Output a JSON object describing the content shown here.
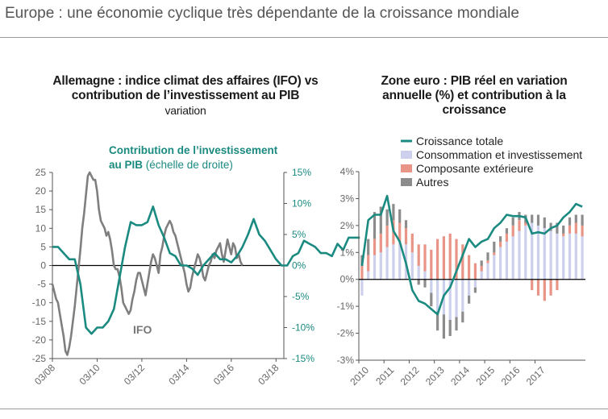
{
  "header": {
    "title": "Europe : une économie cyclique très dépendante de la croissance mondiale"
  },
  "colors": {
    "teal": "#1b8a80",
    "grey": "#7f7f7f",
    "lavender": "#cdd0ec",
    "salmon": "#e89486",
    "darkgrey": "#8c8c8c"
  },
  "chart_data": [
    {
      "type": "line",
      "title": "Allemagne : indice climat des affaires (IFO) vs contribution de l’investissement au PIB",
      "subtitle": "variation",
      "annotation_teal": "Contribution de l’investissement au PIB",
      "annotation_teal_suffix": "(échelle de droite)",
      "annotation_ifo": "IFO",
      "x_ticks": [
        "03/08",
        "03/10",
        "03/12",
        "03/14",
        "03/16",
        "03/18"
      ],
      "y_left": {
        "ylim": [
          -25,
          25
        ],
        "ticks": [
          "25",
          "20",
          "15",
          "10",
          "5",
          "0",
          "-5",
          "-10",
          "-15",
          "-20",
          "-25"
        ]
      },
      "y_right": {
        "ylim": [
          -15,
          15
        ],
        "ticks": [
          "15%",
          "10%",
          "5%",
          "0%",
          "-5%",
          "-10%",
          "-15%"
        ]
      },
      "series": [
        {
          "name": "IFO",
          "axis": "left",
          "x_start": 2008.0,
          "step": 0.0833,
          "values": [
            -5,
            -7,
            -9,
            -10,
            -13,
            -16,
            -19,
            -23,
            -24,
            -22,
            -19,
            -15,
            -11,
            -6,
            -1,
            4,
            10,
            14,
            19,
            24,
            25,
            24,
            23,
            23,
            20,
            15,
            12,
            11,
            10,
            8,
            9,
            7,
            4,
            0,
            -1,
            -1,
            -3,
            -6,
            -10,
            -11,
            -12,
            -13,
            -12,
            -9,
            -7,
            -4,
            -2,
            -2,
            -4,
            -6,
            -8,
            -5,
            -2,
            1,
            3,
            2,
            0,
            -2,
            3,
            5,
            8,
            10,
            11,
            12,
            11,
            9,
            8,
            6,
            4,
            2,
            0,
            -2,
            -5,
            -7,
            -6,
            -3,
            -1,
            1,
            3,
            2,
            0,
            -3,
            -4,
            -2,
            0,
            1,
            3,
            2,
            4,
            5,
            6,
            3,
            1,
            4,
            7,
            5,
            3,
            6,
            5,
            2,
            3,
            1,
            0
          ]
        },
        {
          "name": "Contribution de l’investissement au PIB",
          "axis": "right",
          "x_start": 2008.0,
          "step": 0.25,
          "values": [
            3,
            3,
            2,
            1,
            1,
            -3,
            -10,
            -11,
            -10,
            -10,
            -9,
            -7,
            -2,
            3,
            7,
            6.5,
            6.5,
            7,
            9.5,
            6.5,
            4.5,
            2,
            1.5,
            0,
            0,
            -0.5,
            -1.5,
            0,
            1,
            2,
            1,
            1,
            0.5,
            1.5,
            3,
            5,
            7.5,
            5,
            4,
            2.5,
            1,
            0,
            0,
            1.5,
            2,
            4,
            3.5,
            3,
            2,
            2,
            1.5,
            3.5,
            2.5,
            4.5,
            4.5,
            4.5
          ]
        }
      ]
    },
    {
      "type": "bar",
      "title": "Zone euro : PIB réel en variation annuelle (%) et contribution à la croissance",
      "legend": [
        "Croissance totale",
        "Consommation et investissement",
        "Composante extérieure",
        "Autres"
      ],
      "x_ticks": [
        "2010",
        "2011",
        "2012",
        "2013",
        "2014",
        "2015",
        "2016",
        "2017"
      ],
      "ylim": [
        -3,
        4
      ],
      "y_ticks": [
        "4%",
        "3%",
        "2%",
        "1%",
        "0%",
        "-1%",
        "-2%",
        "-3%"
      ],
      "series": [
        {
          "name": "Consommation et investissement",
          "values": [
            -0.6,
            0.3,
            0.9,
            1.0,
            1.2,
            1.3,
            1.4,
            1.3,
            1.0,
            0.5,
            0.3,
            -0.5,
            -1.2,
            -1.3,
            -1.5,
            -1.4,
            -1.2,
            -0.6,
            -0.3,
            0.3,
            0.6,
            0.9,
            1.2,
            1.4,
            1.6,
            1.8,
            2.0,
            2.1,
            2.0,
            1.9,
            1.8,
            1.7,
            1.6,
            1.7,
            1.7,
            1.6
          ]
        },
        {
          "name": "Composante extérieure",
          "values": [
            0.5,
            0.6,
            0.6,
            0.7,
            0.8,
            0.9,
            0.7,
            0.6,
            0.7,
            0.8,
            1.0,
            1.1,
            1.5,
            1.6,
            1.7,
            1.5,
            1.3,
            0.9,
            0.6,
            0.2,
            0.1,
            0.1,
            0.2,
            0.3,
            0.4,
            0.4,
            0.1,
            -0.4,
            -0.6,
            -0.8,
            -0.6,
            -0.4,
            0.1,
            0.3,
            0.4,
            0.4
          ]
        },
        {
          "name": "Autres",
          "values": [
            0.4,
            0.6,
            1.0,
            1.0,
            0.6,
            0.6,
            0.5,
            0.3,
            0.0,
            -0.2,
            -0.3,
            -0.5,
            -0.7,
            -0.9,
            -0.6,
            -0.5,
            -0.4,
            -0.3,
            -0.2,
            0.2,
            0.3,
            0.4,
            0.2,
            0.2,
            0.3,
            0.3,
            0.3,
            0.3,
            0.4,
            0.4,
            0.3,
            0.4,
            0.3,
            0.3,
            0.3,
            0.4
          ]
        },
        {
          "name": "Croissance totale",
          "values": [
            0.5,
            2.2,
            2.4,
            2.4,
            3.1,
            1.8,
            1.4,
            0.6,
            -0.4,
            -0.8,
            -0.9,
            -1.1,
            -1.3,
            -0.6,
            -0.3,
            0.3,
            0.9,
            1.5,
            1.2,
            1.4,
            1.5,
            1.9,
            2.1,
            2.4,
            2.35,
            2.35,
            2.3,
            1.7,
            1.75,
            1.7,
            1.9,
            2.0,
            2.3,
            2.5,
            2.8,
            2.7
          ]
        }
      ]
    }
  ]
}
